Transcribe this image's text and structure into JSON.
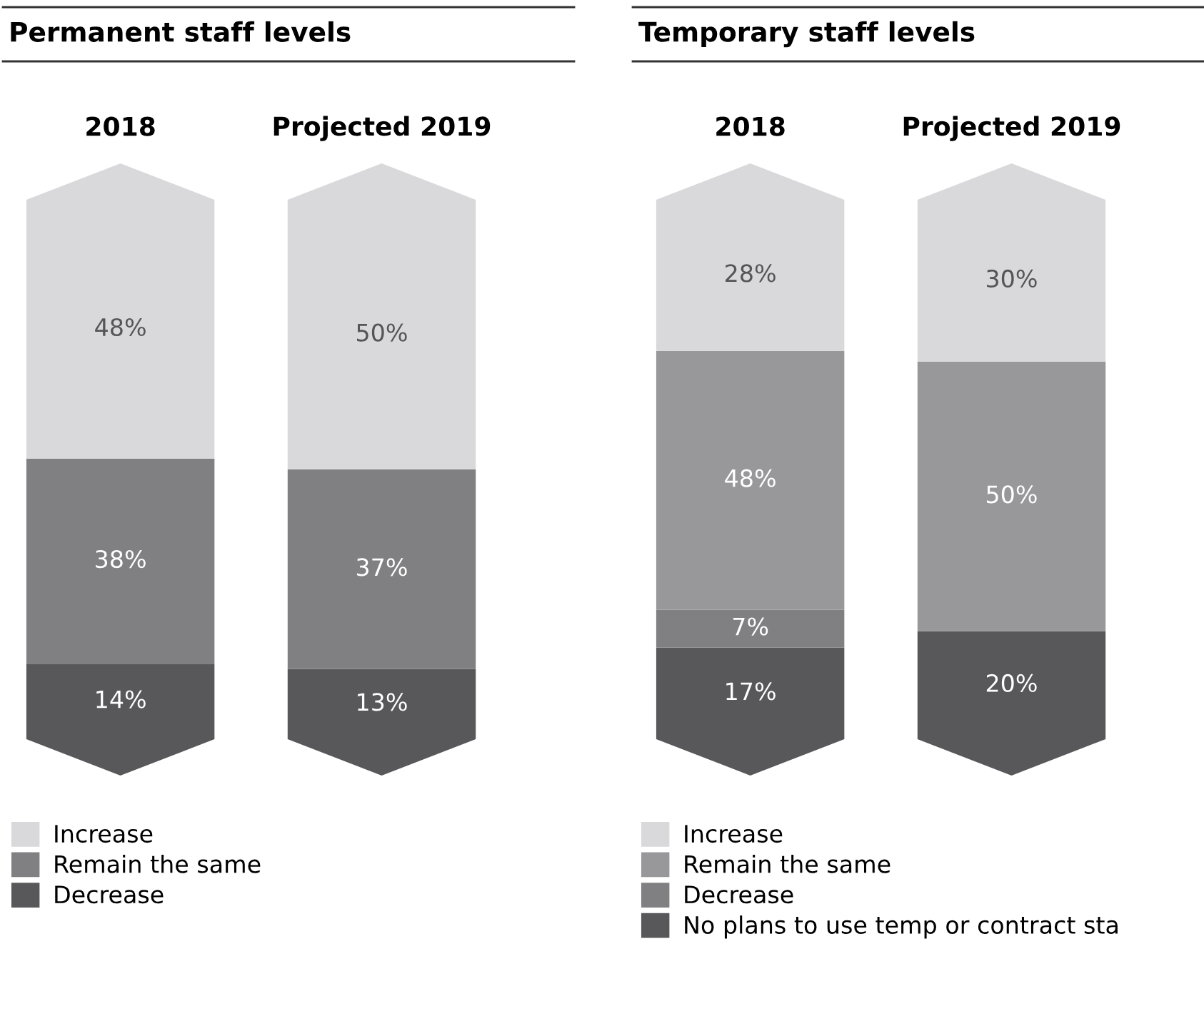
{
  "chart_data": [
    {
      "type": "bar",
      "title": "Permanent staff levels",
      "stacked": true,
      "categories": [
        "2018",
        "Projected 2019"
      ],
      "tick_labels": "x",
      "legend": "bottom",
      "grid": false,
      "series": [
        {
          "name": "Decrease",
          "color": "#58585b",
          "values": [
            14,
            13
          ],
          "value_labels": [
            "14%",
            "13%"
          ]
        },
        {
          "name": "Remain the same",
          "color": "#808083",
          "values": [
            38,
            37
          ],
          "value_labels": [
            "38%",
            "37%"
          ]
        },
        {
          "name": "Increase",
          "color": "#d9d9db",
          "values": [
            48,
            50
          ],
          "value_labels": [
            "48%",
            "50%"
          ]
        }
      ]
    },
    {
      "type": "bar",
      "title": "Temporary staff levels",
      "stacked": true,
      "categories": [
        "2018",
        "Projected 2019"
      ],
      "tick_labels": "x",
      "legend": "bottom",
      "grid": false,
      "series": [
        {
          "name": "No plans to use temp or contract sta",
          "color": "#58585b",
          "values": [
            17,
            20
          ],
          "value_labels": [
            "17%",
            "20%"
          ]
        },
        {
          "name": "Decrease",
          "color": "#808083",
          "values": [
            7,
            null
          ],
          "value_labels": [
            "7%",
            null
          ]
        },
        {
          "name": "Remain the same",
          "color": "#98989b",
          "values": [
            48,
            50
          ],
          "value_labels": [
            "48%",
            "50%"
          ]
        },
        {
          "name": "Increase",
          "color": "#d9d9db",
          "values": [
            28,
            30
          ],
          "value_labels": [
            "28%",
            "30%"
          ]
        }
      ]
    }
  ]
}
